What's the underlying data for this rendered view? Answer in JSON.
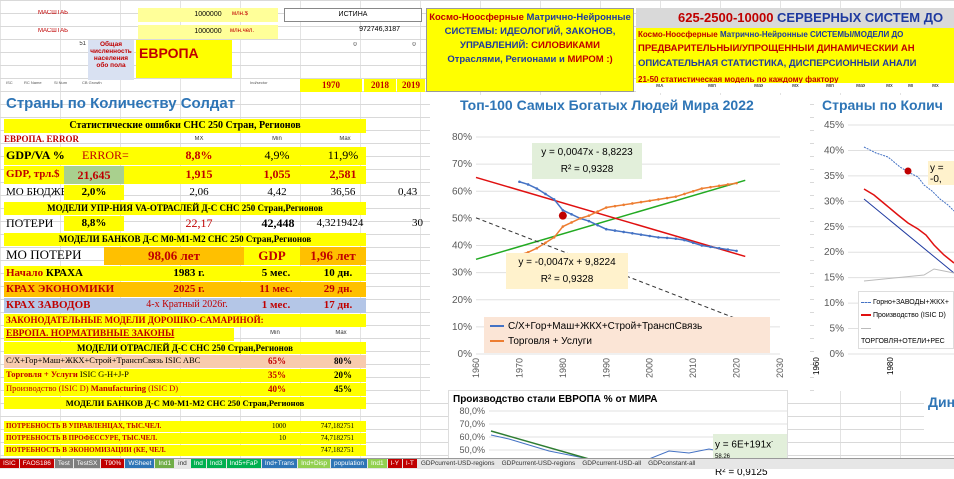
{
  "header": {
    "r1": {
      "label_a": "МАСШТАБ",
      "val_a": "1000000",
      "label_b": "млн.$",
      "val_b": "ИСТИНА"
    },
    "r2": {
      "label_a": "МАСШТАБ",
      "val_a": "1000000",
      "label_b": "млн.чел.",
      "val_b": "972746,3187"
    },
    "r3": {
      "num": "51",
      "zero_a": "0",
      "zero_b": "0"
    },
    "pop_label": "Общая численность населения обо пола",
    "region": "ЕВРОПА",
    "years": [
      "1970",
      "2018",
      "2019"
    ]
  },
  "banner1": {
    "l1a": "Космо-Ноосферные",
    "l1b": " Матрично-Нейронные",
    "l2": "СИСТЕМЫ: ИДЕОЛОГИЙ, ЗАКОНОВ,",
    "l3a": "УПРАВЛЕНИЙ: ",
    "l3b": "СИЛОВИКАМИ",
    "l4a": "Отраслями, Регионами",
    "l4b": " и ",
    "l4c": "МИРОМ :)"
  },
  "banner2": {
    "l1a": "625-2500-10000 ",
    "l1b": "СЕРВЕРНЫХ СИСТЕМ ДО",
    "l2a": "Космо-Ноосферные",
    "l2b": " Матрично-Нейронные СИСТЕМЫ/МОДЕЛИ ДО",
    "l3": "ПРЕДВАРИТЕЛЬНЫЙ/УПРОЩЁННЫЙ ДИНАМИЧЕСКИЙ АН",
    "l4": "ОПИСАТЕЛЬНАЯ СТАТИСТИКА, ДИСПЕРСИОННЫЙ АНАЛИ",
    "l5": "21-50 статистическая модель по каждому фактору",
    "cols": [
      "MX",
      "Min",
      "Max",
      "Mx",
      "Min",
      "Max",
      "Mx",
      "Mi",
      "Mx"
    ]
  },
  "rowlabels": [
    "ISC",
    "RC Name",
    "Sl Num",
    "CB Growth",
    "",
    "",
    "",
    "Ind/sector",
    "",
    "",
    "",
    "",
    "",
    "",
    "",
    "",
    ""
  ],
  "section_title": "Страны по Количеству Солдат",
  "stats": {
    "title": "Статистические ошибки СНС 250 Стран, Регионов",
    "err_label": "ЕВРОПА. ERROR",
    "cols": [
      "MX",
      "Min",
      "Max"
    ],
    "gdpva": {
      "label": "GDP/VA %",
      "err": "ERROR=",
      "mx": "8,8%",
      "min": "4,9%",
      "max": "11,9%"
    },
    "gdp": {
      "label": "GDP, трл.$",
      "val": "21,645",
      "mx": "1,915",
      "min": "1,055",
      "max": "2,581"
    },
    "budget": {
      "label": "МО БЮДЖЕ",
      "pct": "2,0%",
      "mx": "2,06",
      "min": "4,42",
      "max": "36,56",
      "extra": "0,43"
    }
  },
  "mupr": {
    "title": "МОДЕЛИ УПР-НИЯ VA-ОТРАСЛЕЙ Д-С СНС 250 Стран,Регионов",
    "row": {
      "label": "ПОТЕРИ",
      "pct": "8,8%",
      "v1": "22,17",
      "v2": "42,448",
      "v3": "4,3219424",
      "v4": "30"
    }
  },
  "banks1": {
    "title": "МОДЕЛИ БАНКОВ Д-С М0-М1-М2 СНС 250 Стран,Регионов",
    "loss": {
      "label": "МО ПОТЕРИ",
      "years": "98,06 лет",
      "gdp": "GDP",
      "gdp_years": "1,96 лет"
    },
    "start": {
      "label_a": "Начало",
      "label_b": " КРАХА",
      "year": "1983 г.",
      "months": "5 мес.",
      "days": "10 дн."
    },
    "econ": {
      "label": "КРАХ ЭКОНОМИКИ",
      "year": "2025 г.",
      "months": "11 мес.",
      "days": "29 дн."
    },
    "plants": {
      "label": "КРАХ ЗАВОДОВ",
      "text": "4-х Кратный 2026г.",
      "months": "1 мес.",
      "days": "17 дн."
    }
  },
  "laws": {
    "l1": "ЗАКОНОДАТЕЛЬНЫЕ МОДЕЛИ ДОРОШКО-САМАРИНОЙ:",
    "l2": "ЕВРОПА. НОРМАТИВНЫЕ ЗАКОНЫ",
    "min": "Min",
    "max": "Max"
  },
  "branches": {
    "title": "МОДЕЛИ ОТРАСЛЕЙ Д-С СНС 250 Стран,Регионов",
    "rows": [
      {
        "label": "С/Х+Гор+Маш+ЖКХ+Строй+ТранспСвязь ISIC ABC",
        "min": "65%",
        "max": "80%"
      },
      {
        "label_a": "Торговля + Услуги",
        "label_b": " ISIC G-H+J-P",
        "min": "35%",
        "max": "20%"
      },
      {
        "label_a": "Производство (ISIC D) ",
        "label_b": "Manufacturing",
        "label_c": " (ISIC D)",
        "min": "40%",
        "max": "45%"
      }
    ]
  },
  "banks2": {
    "title": "МОДЕЛИ БАНКОВ Д-С М0-М1-М2 СНС 250 Стран,Регионов"
  },
  "needs": [
    {
      "label": "ПОТРЕБНОСТЬ В УПРАВЛЕНЦАХ, ТЫС.ЧЕЛ.",
      "v1": "1000",
      "v2": "747,182751"
    },
    {
      "label": "ПОТРЕБНОСТЬ В ПРОФЕССУРЕ, ТЫС.ЧЕЛ.",
      "v1": "10",
      "v2": "74,7182751"
    },
    {
      "label": "ПОТРЕБНОСТЬ В ЭКОНОМИЗАЦИИ (КЕ, ЧЕЛ.",
      "v1": "",
      "v2": "747,182751"
    }
  ],
  "chart_main": {
    "chart_data": {
      "type": "line",
      "title": "Топ-100 Самых Богатых Людей Мира 2022",
      "ylim": [
        0,
        80
      ],
      "xlim": [
        1960,
        2030
      ],
      "y_ticks": [
        "0%",
        "10%",
        "20%",
        "30%",
        "40%",
        "50%",
        "60%",
        "70%",
        "80%"
      ],
      "x_ticks": [
        "1960",
        "1970",
        "1980",
        "1990",
        "2000",
        "2010",
        "2020",
        "2030"
      ],
      "series": [
        {
          "name": "С/Х+Гор+Маш+ЖКХ+Строй+ТранспСвязь",
          "color": "#4472c4",
          "x": [
            1970,
            1972,
            1974,
            1976,
            1978,
            1980,
            1982,
            1984,
            1986,
            1988,
            1990,
            1992,
            1994,
            1996,
            1998,
            2000,
            2002,
            2004,
            2006,
            2008,
            2010,
            2012,
            2014,
            2016,
            2018,
            2020
          ],
          "y": [
            63.5,
            62.5,
            61,
            59,
            57,
            53,
            51.5,
            50,
            49,
            47.5,
            46,
            45.5,
            45,
            44.5,
            44,
            43.5,
            43,
            42.8,
            42.5,
            42,
            41,
            40,
            39.5,
            39,
            38.5,
            38
          ]
        },
        {
          "name": "Торговля + Услуги",
          "color": "#ed7d31",
          "x": [
            1970,
            1972,
            1974,
            1976,
            1978,
            1980,
            1982,
            1984,
            1986,
            1988,
            1990,
            1992,
            1994,
            1996,
            1998,
            2000,
            2002,
            2004,
            2006,
            2008,
            2010,
            2012,
            2014,
            2016,
            2018,
            2020
          ],
          "y": [
            36.5,
            37.5,
            39,
            41,
            43,
            47,
            48.5,
            50,
            51,
            52.5,
            54,
            54.5,
            55,
            55.5,
            56,
            56.5,
            57,
            57.5,
            58,
            59,
            60,
            61,
            61.5,
            62,
            62.5,
            63
          ]
        }
      ],
      "trends": [
        {
          "eq": "y = 0,0047x - 8,8223",
          "r2": "R² = 0,9328",
          "color": "#22aa22",
          "slope": 0.47,
          "at1970": 39.6
        },
        {
          "eq": "y = -0,0047x + 9,8224",
          "r2": "R² = 0,9328",
          "color": "#e01010",
          "slope": -0.47,
          "at1970": 60.4
        },
        {
          "color": "#333333",
          "slope": -0.62,
          "at1970": 44
        }
      ],
      "marker": {
        "x": 1980,
        "y": 51
      }
    }
  },
  "chart_right": {
    "title": "Страны по Колич",
    "y_ticks": [
      "45%",
      "40%",
      "35%",
      "30%",
      "25%",
      "20%",
      "15%",
      "10%",
      "5%",
      "0%"
    ],
    "x_ticks": [
      "1960",
      "1980"
    ],
    "label_eq": "y = -0,",
    "legend": [
      "Горно+ЗАВОДЫ+ЖКХ+",
      "Производство (ISIC D)",
      "ТОРГОВЛЯ+ОТЕЛИ+РЕС"
    ]
  },
  "chart_steel": {
    "title": "Производство стали ЕВРОПА % от МИРА",
    "y_ticks": [
      "80,0%",
      "70,0%",
      "60,0%",
      "50,0%"
    ],
    "eq": "y = 6E+191x",
    "eq_exp": "-58,26",
    "r2": "R² = 0,9125"
  },
  "chart_din": {
    "title": "Дин"
  },
  "tabs": [
    {
      "label": "ISIC",
      "color": "#c00000"
    },
    {
      "label": "FAOS186",
      "color": "#c00000"
    },
    {
      "label": "Test",
      "color": "#7f7f7f"
    },
    {
      "label": "TestSX",
      "color": "#7f7f7f"
    },
    {
      "label": "T90%",
      "color": "#c00000"
    },
    {
      "label": "WSheet",
      "color": "#2e75b6"
    },
    {
      "label": "Ind1",
      "color": "#70ad47"
    },
    {
      "label": "ind",
      "color": "#e6e6e6"
    },
    {
      "label": "Ind",
      "color": "#00b050"
    },
    {
      "label": "Ind3",
      "color": "#00b050"
    },
    {
      "label": "Ind5+FaP",
      "color": "#00b050"
    },
    {
      "label": "Ind+Trans",
      "color": "#2e75b6"
    },
    {
      "label": "Ind+Disp",
      "color": "#92d050"
    },
    {
      "label": "population",
      "color": "#2e75b6"
    },
    {
      "label": "Ind1",
      "color": "#92d050"
    },
    {
      "label": "I-Y",
      "color": "#c00000"
    },
    {
      "label": "I-T",
      "color": "#c00000"
    },
    {
      "label": "GDPcurrent-USD-regions",
      "color": "#e6e6e6"
    },
    {
      "label": "GDPcurrent-USD-regions",
      "color": "#e6e6e6"
    },
    {
      "label": "GDPcurrent-USD-all",
      "color": "#e6e6e6"
    },
    {
      "label": "GDPconstant-all",
      "color": "#e6e6e6"
    }
  ]
}
